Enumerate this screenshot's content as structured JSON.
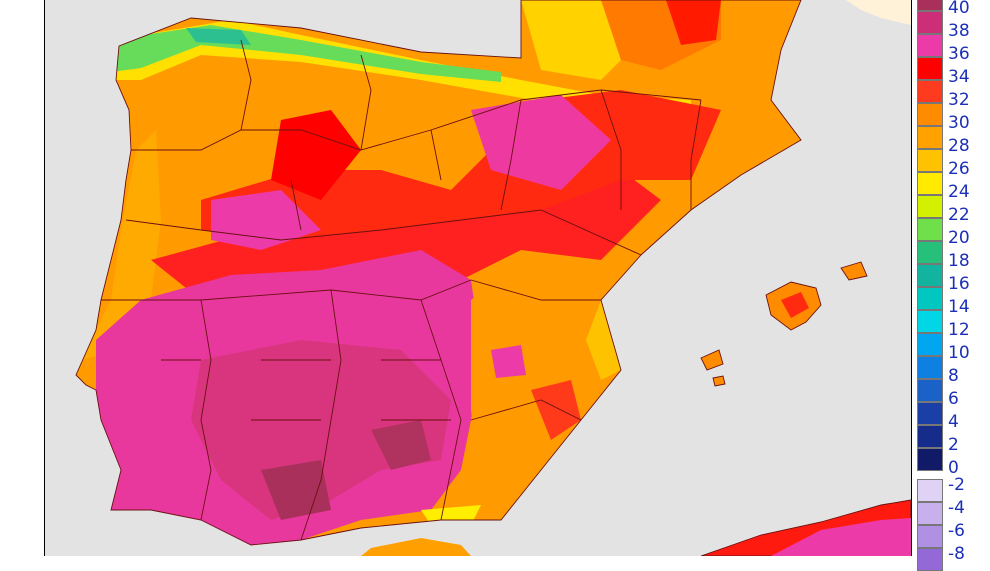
{
  "legend": {
    "warm_scale": [
      {
        "label": "40",
        "color": "#a8305a"
      },
      {
        "label": "38",
        "color": "#cc2e78"
      },
      {
        "label": "36",
        "color": "#ec3aa8"
      },
      {
        "label": "34",
        "color": "#ff0000"
      },
      {
        "label": "32",
        "color": "#ff3b1f"
      },
      {
        "label": "30",
        "color": "#ff8c00"
      },
      {
        "label": "28",
        "color": "#ffa200"
      },
      {
        "label": "26",
        "color": "#ffc200"
      },
      {
        "label": "24",
        "color": "#ffea00"
      },
      {
        "label": "22",
        "color": "#d2f000"
      },
      {
        "label": "20",
        "color": "#70e04a"
      },
      {
        "label": "18",
        "color": "#27c07a"
      },
      {
        "label": "16",
        "color": "#12b4a0"
      },
      {
        "label": "14",
        "color": "#00c8c0"
      },
      {
        "label": "12",
        "color": "#00d6e6"
      },
      {
        "label": "10",
        "color": "#00a6f0"
      },
      {
        "label": "8",
        "color": "#0e80e2"
      },
      {
        "label": "6",
        "color": "#1a62c8"
      },
      {
        "label": "4",
        "color": "#1a40a8"
      },
      {
        "label": "2",
        "color": "#162c8a"
      },
      {
        "label": "0",
        "color": "#101a66"
      }
    ],
    "cold_scale": [
      {
        "label": "-2",
        "color": "#e0d2f4"
      },
      {
        "label": "-4",
        "color": "#c8b0ec"
      },
      {
        "label": "-6",
        "color": "#b090e2"
      },
      {
        "label": "-8",
        "color": "#9468d6"
      }
    ]
  },
  "map": {
    "sea_color": "#e3e3e3",
    "border_color": "#6b1010"
  }
}
